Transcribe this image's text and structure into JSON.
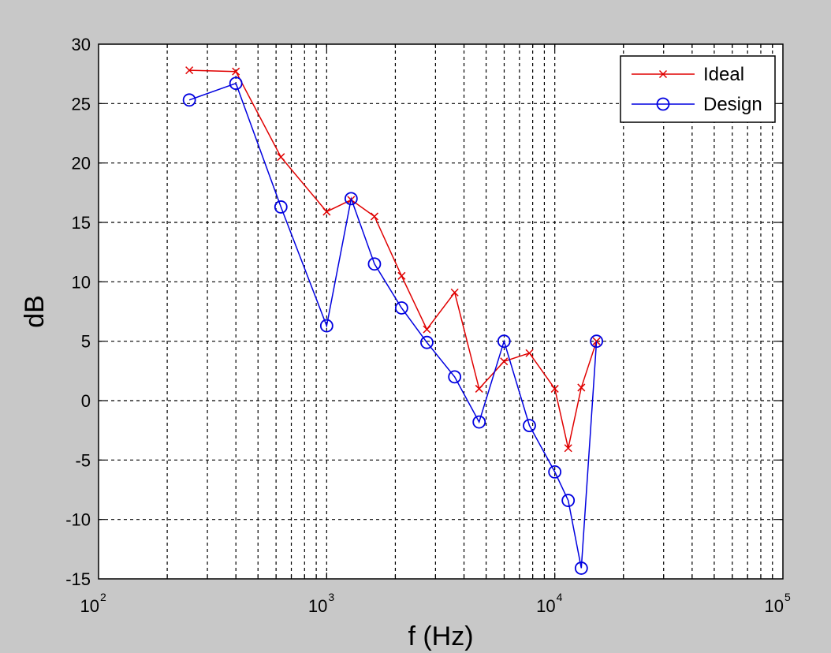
{
  "chart_data": {
    "type": "line",
    "title": "",
    "xlabel": "f (Hz)",
    "ylabel": "dB",
    "xscale": "log",
    "xlim": [
      100,
      100000
    ],
    "ylim": [
      -15,
      30
    ],
    "grid": true,
    "legend_position": "top-right",
    "x_ticks": [
      {
        "value": 100,
        "base": "10",
        "exp": "2"
      },
      {
        "value": 1000,
        "base": "10",
        "exp": "3"
      },
      {
        "value": 10000,
        "base": "10",
        "exp": "4"
      },
      {
        "value": 100000,
        "base": "10",
        "exp": "5"
      }
    ],
    "y_ticks": [
      {
        "value": 30,
        "label": "30"
      },
      {
        "value": 25,
        "label": "25"
      },
      {
        "value": 20,
        "label": "20"
      },
      {
        "value": 15,
        "label": "15"
      },
      {
        "value": 10,
        "label": "10"
      },
      {
        "value": 5,
        "label": "5"
      },
      {
        "value": 0,
        "label": "0"
      },
      {
        "value": -5,
        "label": "-5"
      },
      {
        "value": -10,
        "label": "-10"
      },
      {
        "value": -15,
        "label": "-15"
      }
    ],
    "series": [
      {
        "name": "Ideal",
        "color": "#e00000",
        "marker": "x",
        "x": [
          250,
          400,
          630,
          1000,
          1280,
          1620,
          2130,
          2750,
          3640,
          4660,
          5990,
          7740,
          10000,
          11450,
          13070,
          15240
        ],
        "y": [
          27.8,
          27.7,
          20.5,
          15.9,
          16.9,
          15.5,
          10.5,
          6.0,
          9.1,
          1.0,
          3.3,
          4.0,
          1.0,
          -4.0,
          1.1,
          5.0
        ]
      },
      {
        "name": "Design",
        "color": "#0000e0",
        "marker": "o",
        "x": [
          250,
          400,
          630,
          1000,
          1280,
          1620,
          2130,
          2750,
          3640,
          4660,
          5990,
          7740,
          10000,
          11450,
          13070,
          15240
        ],
        "y": [
          25.3,
          26.7,
          16.3,
          6.3,
          17.0,
          11.5,
          7.8,
          4.9,
          2.0,
          -1.8,
          5.0,
          -2.1,
          -6.0,
          -8.4,
          -14.1,
          5.0
        ]
      }
    ]
  }
}
